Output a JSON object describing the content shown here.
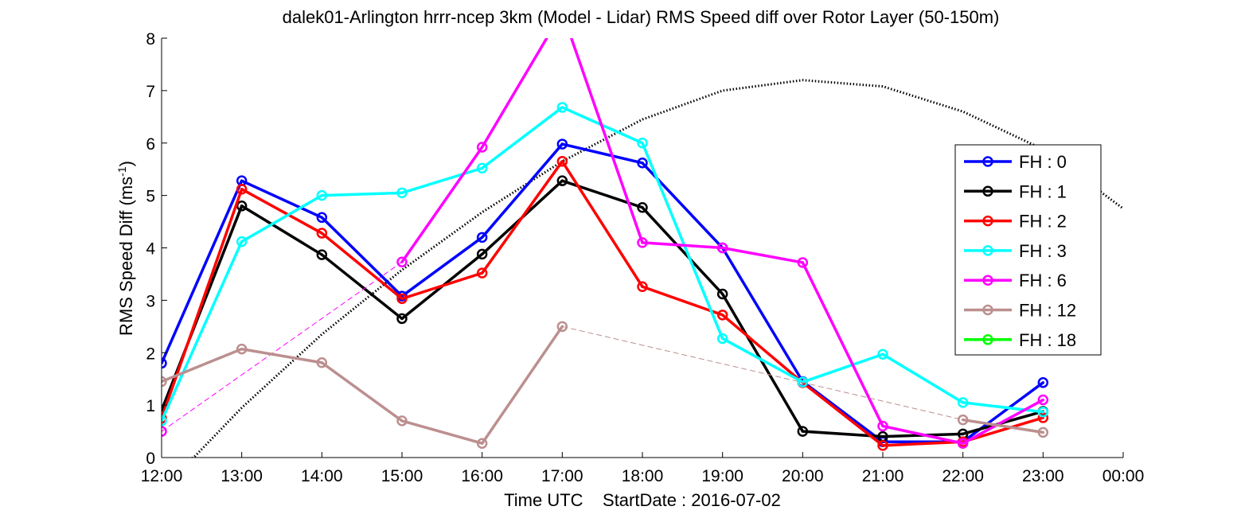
{
  "chart_data": {
    "type": "line",
    "title": "dalek01-Arlington hrrr-ncep 3km (Model - Lidar) RMS Speed diff over Rotor Layer (50-150m)",
    "xlabel": "Time UTC    StartDate : 2016-07-02",
    "ylabel": "RMS Speed Diff (ms",
    "ylabel_sup": "-1",
    "ylabel_close": ")",
    "xlim": [
      12,
      24
    ],
    "ylim": [
      0,
      8
    ],
    "x_ticks": [
      12,
      13,
      14,
      15,
      16,
      17,
      18,
      19,
      20,
      21,
      22,
      23,
      24
    ],
    "x_tick_labels": [
      "12:00",
      "13:00",
      "14:00",
      "15:00",
      "16:00",
      "17:00",
      "18:00",
      "19:00",
      "20:00",
      "21:00",
      "22:00",
      "23:00",
      "00:00"
    ],
    "y_ticks": [
      0,
      1,
      2,
      3,
      4,
      5,
      6,
      7,
      8
    ],
    "y_tick_labels": [
      "0",
      "1",
      "2",
      "3",
      "4",
      "5",
      "6",
      "7",
      "8"
    ],
    "grid": false,
    "legend_position": "right",
    "series": [
      {
        "name": "FH : 0",
        "color": "#0000ff",
        "points": [
          [
            12,
            1.8
          ],
          [
            13,
            5.28
          ],
          [
            14,
            4.58
          ],
          [
            15,
            3.08
          ],
          [
            16,
            4.2
          ],
          [
            17,
            5.98
          ],
          [
            18,
            5.62
          ],
          [
            19,
            4.0
          ],
          [
            20,
            1.45
          ],
          [
            21,
            0.3
          ],
          [
            22,
            0.3
          ],
          [
            23,
            1.43
          ]
        ]
      },
      {
        "name": "FH : 1",
        "color": "#000000",
        "points": [
          [
            12,
            0.9
          ],
          [
            13,
            4.8
          ],
          [
            14,
            3.87
          ],
          [
            15,
            2.65
          ],
          [
            16,
            3.88
          ],
          [
            17,
            5.28
          ],
          [
            18,
            4.77
          ],
          [
            19,
            3.12
          ],
          [
            20,
            0.5
          ],
          [
            21,
            0.4
          ],
          [
            22,
            0.45
          ],
          [
            23,
            0.88
          ]
        ]
      },
      {
        "name": "FH : 2",
        "color": "#ff0000",
        "points": [
          [
            12,
            0.75
          ],
          [
            13,
            5.12
          ],
          [
            14,
            4.28
          ],
          [
            15,
            3.03
          ],
          [
            16,
            3.52
          ],
          [
            17,
            5.65
          ],
          [
            18,
            3.26
          ],
          [
            19,
            2.72
          ],
          [
            20,
            1.43
          ],
          [
            21,
            0.23
          ],
          [
            22,
            0.3
          ],
          [
            23,
            0.76
          ]
        ]
      },
      {
        "name": "FH : 3",
        "color": "#00ffff",
        "points": [
          [
            12,
            0.7
          ],
          [
            13,
            4.12
          ],
          [
            14,
            5.0
          ],
          [
            15,
            5.05
          ],
          [
            16,
            5.52
          ],
          [
            17,
            6.68
          ],
          [
            18,
            6.0
          ],
          [
            19,
            2.27
          ],
          [
            20,
            1.44
          ],
          [
            21,
            1.97
          ],
          [
            22,
            1.05
          ],
          [
            23,
            0.87
          ]
        ]
      },
      {
        "name": "FH : 6",
        "color": "#ff00ff",
        "points": [
          [
            12,
            0.5
          ],
          [
            15,
            3.73
          ],
          [
            16,
            5.92
          ],
          [
            17,
            8.5
          ],
          [
            18,
            4.1
          ],
          [
            19,
            4.0
          ],
          [
            20,
            3.72
          ],
          [
            21,
            0.6
          ],
          [
            22,
            0.27
          ],
          [
            23,
            1.1
          ]
        ],
        "gaps_dashed": [
          [
            0,
            1
          ]
        ]
      },
      {
        "name": "FH : 12",
        "color": "#bc8f8f",
        "points": [
          [
            12,
            1.45
          ],
          [
            13,
            2.07
          ],
          [
            14,
            1.81
          ],
          [
            15,
            0.7
          ],
          [
            16,
            0.27
          ],
          [
            17,
            2.5
          ],
          [
            22,
            0.72
          ],
          [
            23,
            0.48
          ]
        ],
        "gaps_dashed": [
          [
            5,
            6
          ]
        ]
      },
      {
        "name": "FH : 18",
        "color": "#00ff00",
        "points": []
      }
    ],
    "reference_curve": {
      "style": "dotted",
      "color": "#000000",
      "points": [
        [
          12.0,
          -0.2
        ],
        [
          12.4,
          0.0
        ],
        [
          13.0,
          0.95
        ],
        [
          14.0,
          2.35
        ],
        [
          15.0,
          3.58
        ],
        [
          16.0,
          4.68
        ],
        [
          17.0,
          5.65
        ],
        [
          18.0,
          6.45
        ],
        [
          19.0,
          7.0
        ],
        [
          20.0,
          7.2
        ],
        [
          21.0,
          7.08
        ],
        [
          22.0,
          6.6
        ],
        [
          23.0,
          5.88
        ],
        [
          24.0,
          4.75
        ]
      ]
    }
  }
}
